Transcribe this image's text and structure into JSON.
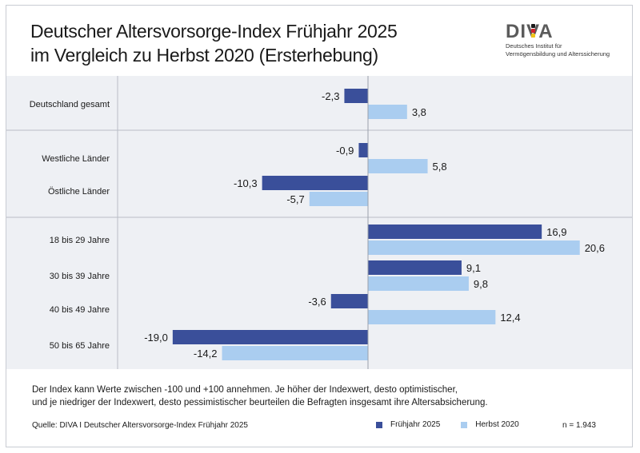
{
  "title_line1": "Deutscher Altersvorsorge-Index Frühjahr 2025",
  "title_line2": "im Vergleich zu Herbst 2020 (Ersterhebung)",
  "logo": {
    "mark": "DIVA",
    "subtitle_line1": "Deutsches Institut für",
    "subtitle_line2": "Vermögensbildung und Alterssicherung",
    "dot_colors": [
      "#1a1a1a",
      "#d2232a",
      "#f0c419"
    ]
  },
  "colors": {
    "fruehjahr_2025": "#3a4f9a",
    "herbst_2020": "#aacdf0",
    "panel_background": "#eef0f4",
    "separator": "#b9bdc6",
    "zero_line": "#9aa0aa"
  },
  "chart_data": {
    "type": "bar",
    "orientation": "horizontal",
    "categories": [
      "Deutschland gesamt",
      "Westliche Länder",
      "Östliche Länder",
      "18 bis 29 Jahre",
      "30 bis 39 Jahre",
      "40 bis 49 Jahre",
      "50 bis 65 Jahre"
    ],
    "groups": [
      [
        "Deutschland gesamt"
      ],
      [
        "Westliche Länder",
        "Östliche Länder"
      ],
      [
        "18 bis 29 Jahre",
        "30 bis 39 Jahre",
        "40 bis 49 Jahre",
        "50 bis 65 Jahre"
      ]
    ],
    "series": [
      {
        "name": "Frühjahr 2025",
        "values": [
          -2.3,
          -0.9,
          -10.3,
          16.9,
          9.1,
          -3.6,
          -19.0
        ],
        "labels": [
          "-2,3",
          "-0,9",
          "-10,3",
          "16,9",
          "9,1",
          "-3,6",
          "-19,0"
        ]
      },
      {
        "name": "Herbst 2020",
        "values": [
          3.8,
          5.8,
          -5.7,
          20.6,
          9.8,
          12.4,
          -14.2
        ],
        "labels": [
          "3,8",
          "5,8",
          "-5,7",
          "20,6",
          "9,8",
          "12,4",
          "-14,2"
        ]
      }
    ],
    "xlim": [
      -20,
      24
    ],
    "grid": false,
    "legend_position": "bottom-right"
  },
  "footnote_line1": "Der Index kann Werte zwischen -100 und +100 annehmen. Je höher der Indexwert, desto optimistischer,",
  "footnote_line2": "und je niedriger der Indexwert, desto pessimistischer beurteilen die Befragten insgesamt ihre Altersabsicherung.",
  "source": "Quelle: DIVA I Deutscher Altersvorsorge-Index Frühjahr 2025",
  "legend": {
    "item1": "Frühjahr 2025",
    "item2": "Herbst 2020"
  },
  "sample_size": "n = 1.943"
}
